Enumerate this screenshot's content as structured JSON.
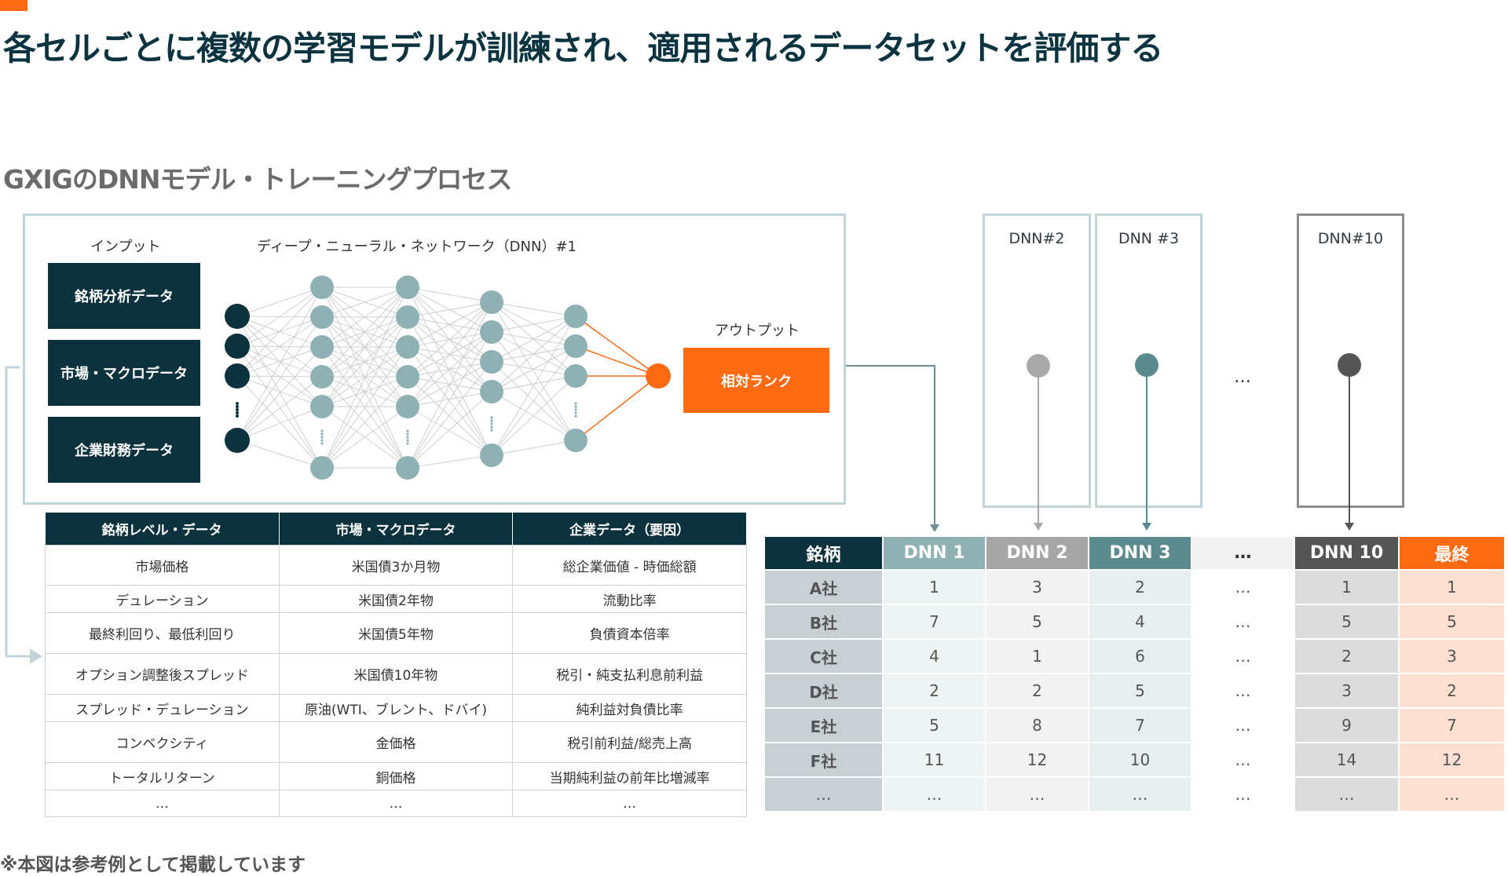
{
  "title": "各セルごとに複数の学習モデルが訓練され、適用されるデータセットを評価する",
  "subtitle": "GXIGのDNNモデル・トレーニングプロセス",
  "footnote": "※本図は参考例として掲載しています",
  "diagram": {
    "input_label": "インプット",
    "network_label": "ディープ・ニューラル・ネットワーク（DNN）#1",
    "output_label": "アウトプット",
    "inputs": [
      "銘柄分析データ",
      "市場・マクロデータ",
      "企業財務データ"
    ],
    "output": "相対ランク",
    "other_models": [
      "DNN#2",
      "DNN #3",
      "DNN#10"
    ],
    "between_models": "…",
    "colors": {
      "dark": "#0c323d",
      "accent": "#ff6a13",
      "node_teal": "#8fb1b4",
      "dnn2_node": "#a9a9a9",
      "dnn3_node": "#5c8b8f",
      "dnn10_node": "#555555"
    }
  },
  "data_table": {
    "headers": [
      "銘柄レベル・データ",
      "市場・マクロデータ",
      "企業データ（要因）"
    ],
    "rows": [
      [
        "市場価格",
        "米国債3か月物",
        "総企業価値 - 時価総額"
      ],
      [
        "デュレーション",
        "米国債2年物",
        "流動比率"
      ],
      [
        "最終利回り、最低利回り",
        "米国債5年物",
        "負債資本倍率"
      ],
      [
        "オプション調整後スプレッド",
        "米国債10年物",
        "税引・純支払利息前利益"
      ],
      [
        "スプレッド・デュレーション",
        "原油(WTI、ブレント、ドバイ)",
        "純利益対負債比率"
      ],
      [
        "コンベクシティ",
        "金価格",
        "税引前利益/総売上高"
      ],
      [
        "トータルリターン",
        "銅価格",
        "当期純利益の前年比増減率"
      ],
      [
        "…",
        "…",
        "…"
      ]
    ]
  },
  "rank_table": {
    "headers": [
      "銘柄",
      "DNN 1",
      "DNN 2",
      "DNN 3",
      "…",
      "DNN 10",
      "最終"
    ],
    "header_colors": [
      "#0c323d",
      "#8fb1b4",
      "#a6a6a6",
      "#5c8b8f",
      "#f2f2f2",
      "#555555",
      "#ff6a13"
    ],
    "rows": [
      [
        "A社",
        "1",
        "3",
        "2",
        "…",
        "1",
        "1"
      ],
      [
        "B社",
        "7",
        "5",
        "4",
        "…",
        "5",
        "5"
      ],
      [
        "C社",
        "4",
        "1",
        "6",
        "…",
        "2",
        "3"
      ],
      [
        "D社",
        "2",
        "2",
        "5",
        "…",
        "3",
        "2"
      ],
      [
        "E社",
        "5",
        "8",
        "7",
        "…",
        "9",
        "7"
      ],
      [
        "F社",
        "11",
        "12",
        "10",
        "…",
        "14",
        "12"
      ],
      [
        "…",
        "…",
        "…",
        "…",
        "…",
        "…",
        "…"
      ]
    ]
  }
}
